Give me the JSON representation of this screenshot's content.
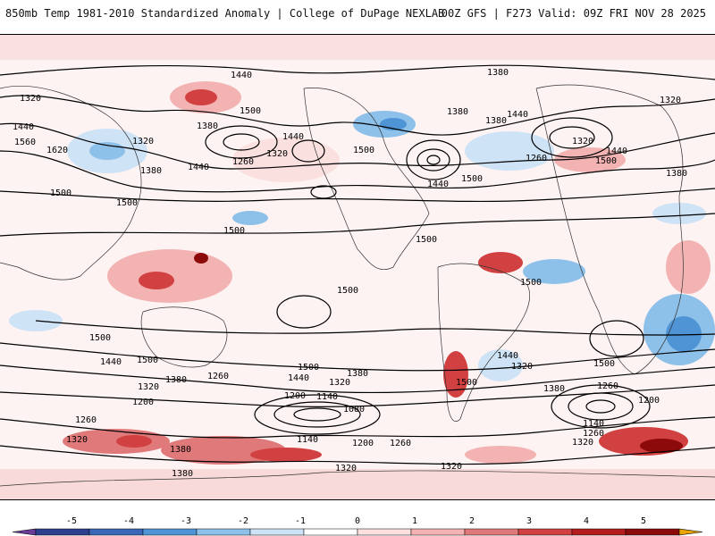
{
  "header": {
    "title_left": "850mb Temp 1981-2010 Standardized Anomaly | College of DuPage NEXLAB",
    "title_right": "00Z GFS | F273 Valid: 09Z FRI NOV 28 2025"
  },
  "contour_labels": [
    "1440",
    "1380",
    "1320",
    "1500",
    "1560",
    "1620",
    "1260",
    "1200",
    "1140",
    "1080"
  ],
  "colorbar": {
    "ticks": [
      "-5",
      "-4",
      "-3",
      "-2",
      "-1",
      "0",
      "1",
      "2",
      "3",
      "4",
      "5"
    ],
    "colors": [
      "#6a3d9a",
      "#2c3f8f",
      "#3a67b8",
      "#4f95d6",
      "#8ec1ea",
      "#cfe3f6",
      "#ffffff",
      "#fbe0e0",
      "#f3b3b3",
      "#e07a7a",
      "#d24141",
      "#b51c1c",
      "#8c0a0a",
      "#e8a400"
    ]
  },
  "map_colors": {
    "warm_light": "#f9d6d6",
    "warm_mid": "#ee9a9a",
    "warm_strong": "#d43030",
    "cool_light": "#d6e6f6",
    "cool_mid": "#8fbce6",
    "cool_strong": "#4a8fd2",
    "contour": "#000000"
  }
}
